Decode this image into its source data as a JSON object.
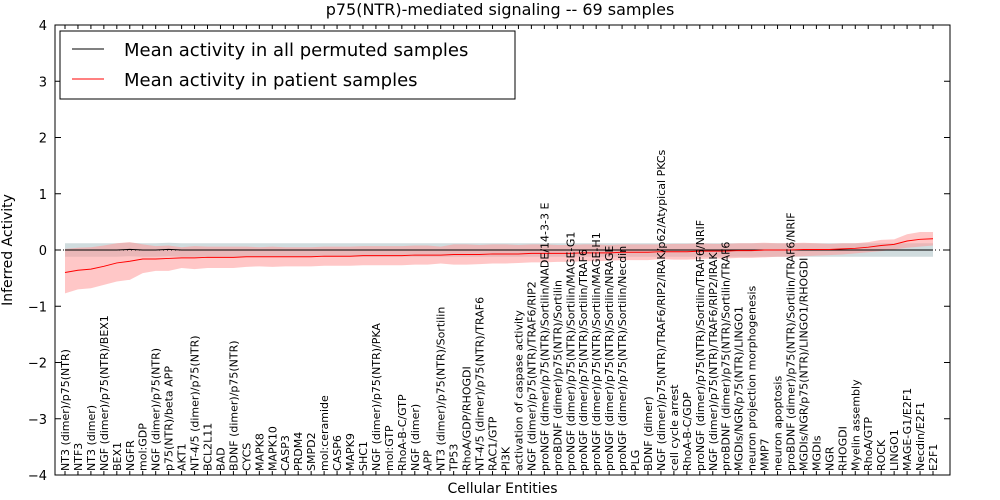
{
  "chart_data": {
    "type": "line",
    "title": "p75(NTR)-mediated signaling -- 69 samples",
    "xlabel": "Cellular Entities",
    "ylabel": "Inferred Activity",
    "ylim": [
      -4,
      4
    ],
    "yticks": [
      "−4",
      "−3",
      "−2",
      "−1",
      "0",
      "1",
      "2",
      "3",
      "4"
    ],
    "grid": false,
    "legend_position": "top-left",
    "colors": {
      "permuted": "#000000",
      "patient": "#ff0000",
      "patient_band": "#ff9999",
      "permuted_band": "#b0c4c8"
    },
    "categories": [
      "NT3 (dimer)/p75(NTR)",
      "NTF3",
      "NT3 (dimer)",
      "NGF (dimer)/p75(NTR)/BEX1",
      "BEX1",
      "NGFR",
      "mol:GDP",
      "NGF (dimer)/p75(NTR)",
      "p75(NTR)/beta APP",
      "AKT1",
      "NT-4/5 (dimer)/p75(NTR)",
      "BCL2L11",
      "BAD",
      "BDNF (dimer)/p75(NTR)",
      "CYCS",
      "MAPK8",
      "MAPK10",
      "CASP3",
      "PRDM4",
      "SMPD2",
      "mol:ceramide",
      "CASP6",
      "MAPK9",
      "SHC1",
      "NGF (dimer)/p75(NTR)/PKA",
      "mol:GTP",
      "RhoA-B-C/GTP",
      "NGF (dimer)",
      "APP",
      "NT3 (dimer)/p75(NTR)/Sortilin",
      "TP53",
      "RhoA/GDP/RHOGDI",
      "NT-4/5 (dimer)/p75(NTR)/TRAF6",
      "RAC1/GTP",
      "PI3K",
      "activation of caspase activity",
      "NGF (dimer)/p75(NTR)/TRAF6/RIP2",
      "proNGF (dimer)/p75(NTR)/Sortilin/NADE/14-3-3 E",
      "proBDNF (dimer)/p75(NTR)/Sortilin",
      "proNGF (dimer)/p75(NTR)/Sortilin/MAGE-G1",
      "proNGF (dimer)/p75(NTR)/Sortilin/TRAF6",
      "proNGF (dimer)/p75(NTR)/Sortilin/MAGE-H1",
      "proNGF (dimer)/p75(NTR)/Sortilin/NRAGE",
      "proNGF (dimer)/p75(NTR)/Sortilin/Necdin",
      "PLG",
      "BDNF (dimer)",
      "NGF (dimer)/p75(NTR)/TRAF6/RIP2/IRAK/p62/Atypical PKCs",
      "cell cycle arrest",
      "RhoA-B-C/GDP",
      "proNGF (dimer)/p75(NTR)/Sortilin/TRAF6/NRIF",
      "NGF (dimer)/p75(NTR)/TRAF6/RIP2/IRAK",
      "proBDNF (dimer)/p75(NTR)/Sortilin/TRAF6",
      "MGDIs/NGR/p75(NTR)/LINGO1",
      "neuron projection morphogenesis",
      "MMP7",
      "neuron apoptosis",
      "proBDNF (dimer)/p75(NTR)/Sortilin/TRAF6/NRIF",
      "MGDIs/NGR/p75(NTR)/LINGO1/RHOGDI",
      "MGDIs",
      "NGR",
      "RHOGDI",
      "Myelin assembly",
      "RhoA/GTP",
      "ROCK",
      "LINGO1",
      "MAGE-G1/E2F1",
      "Necdin/E2F1",
      "E2F1"
    ],
    "patient_mean": [
      -0.4,
      -0.36,
      -0.34,
      -0.29,
      -0.23,
      -0.2,
      -0.16,
      -0.16,
      -0.15,
      -0.14,
      -0.14,
      -0.13,
      -0.13,
      -0.13,
      -0.12,
      -0.12,
      -0.12,
      -0.12,
      -0.12,
      -0.12,
      -0.11,
      -0.11,
      -0.11,
      -0.1,
      -0.1,
      -0.1,
      -0.1,
      -0.09,
      -0.09,
      -0.09,
      -0.08,
      -0.08,
      -0.08,
      -0.07,
      -0.07,
      -0.07,
      -0.06,
      -0.06,
      -0.06,
      -0.06,
      -0.05,
      -0.05,
      -0.05,
      -0.04,
      -0.04,
      -0.04,
      -0.03,
      -0.03,
      -0.03,
      -0.02,
      -0.02,
      -0.02,
      -0.01,
      -0.01,
      0.0,
      0.0,
      0.0,
      0.01,
      0.01,
      0.01,
      0.02,
      0.03,
      0.05,
      0.08,
      0.1,
      0.16,
      0.19,
      0.2,
      0.24
    ],
    "patient_lower": [
      -0.77,
      -0.7,
      -0.68,
      -0.62,
      -0.56,
      -0.53,
      -0.41,
      -0.37,
      -0.37,
      -0.32,
      -0.34,
      -0.32,
      -0.32,
      -0.32,
      -0.3,
      -0.29,
      -0.3,
      -0.29,
      -0.29,
      -0.29,
      -0.28,
      -0.28,
      -0.28,
      -0.27,
      -0.27,
      -0.27,
      -0.27,
      -0.26,
      -0.26,
      -0.24,
      -0.26,
      -0.26,
      -0.25,
      -0.24,
      -0.24,
      -0.23,
      -0.22,
      -0.22,
      -0.21,
      -0.21,
      -0.2,
      -0.2,
      -0.19,
      -0.18,
      -0.18,
      -0.18,
      -0.16,
      -0.17,
      -0.17,
      -0.16,
      -0.15,
      -0.15,
      -0.14,
      -0.14,
      -0.13,
      -0.12,
      -0.12,
      -0.11,
      -0.1,
      -0.09,
      -0.08,
      -0.06,
      -0.04,
      -0.02,
      0.01,
      0.04,
      0.06,
      0.08,
      0.1
    ],
    "patient_upper": [
      0.02,
      0.04,
      0.05,
      0.08,
      0.12,
      0.14,
      0.1,
      0.07,
      0.08,
      0.05,
      0.07,
      0.06,
      0.06,
      0.06,
      0.06,
      0.05,
      0.06,
      0.05,
      0.05,
      0.05,
      0.06,
      0.06,
      0.06,
      0.07,
      0.07,
      0.07,
      0.07,
      0.08,
      0.08,
      0.06,
      0.1,
      0.1,
      0.09,
      0.1,
      0.1,
      0.09,
      0.1,
      0.1,
      0.09,
      0.09,
      0.1,
      0.1,
      0.09,
      0.1,
      0.1,
      0.1,
      0.1,
      0.11,
      0.11,
      0.12,
      0.11,
      0.11,
      0.12,
      0.12,
      0.13,
      0.12,
      0.12,
      0.13,
      0.12,
      0.11,
      0.12,
      0.12,
      0.14,
      0.18,
      0.19,
      0.28,
      0.32,
      0.32,
      0.38
    ],
    "permuted_mean": [
      0.0,
      0.0,
      0.0,
      0.0,
      0.0,
      0.01,
      0.0,
      0.0,
      0.01,
      0.0,
      0.0,
      0.0,
      0.0,
      0.0,
      0.0,
      0.0,
      0.0,
      0.0,
      0.0,
      0.0,
      0.0,
      0.0,
      0.0,
      0.0,
      0.0,
      0.0,
      0.0,
      0.0,
      0.0,
      0.0,
      0.0,
      0.0,
      0.0,
      0.0,
      0.0,
      0.0,
      0.0,
      0.0,
      0.0,
      0.0,
      0.0,
      0.0,
      0.0,
      0.0,
      0.0,
      0.0,
      0.0,
      0.0,
      0.0,
      0.0,
      0.0,
      0.0,
      0.0,
      0.0,
      0.0,
      0.0,
      0.0,
      0.0,
      0.0,
      0.0,
      0.0,
      0.0,
      0.0,
      0.0,
      0.0,
      0.0,
      0.0,
      0.0,
      0.0
    ],
    "permuted_band": 0.12,
    "series": [
      {
        "name": "Mean activity in all permuted samples",
        "color": "#000000"
      },
      {
        "name": "Mean activity in patient samples",
        "color": "#ff0000"
      }
    ]
  }
}
